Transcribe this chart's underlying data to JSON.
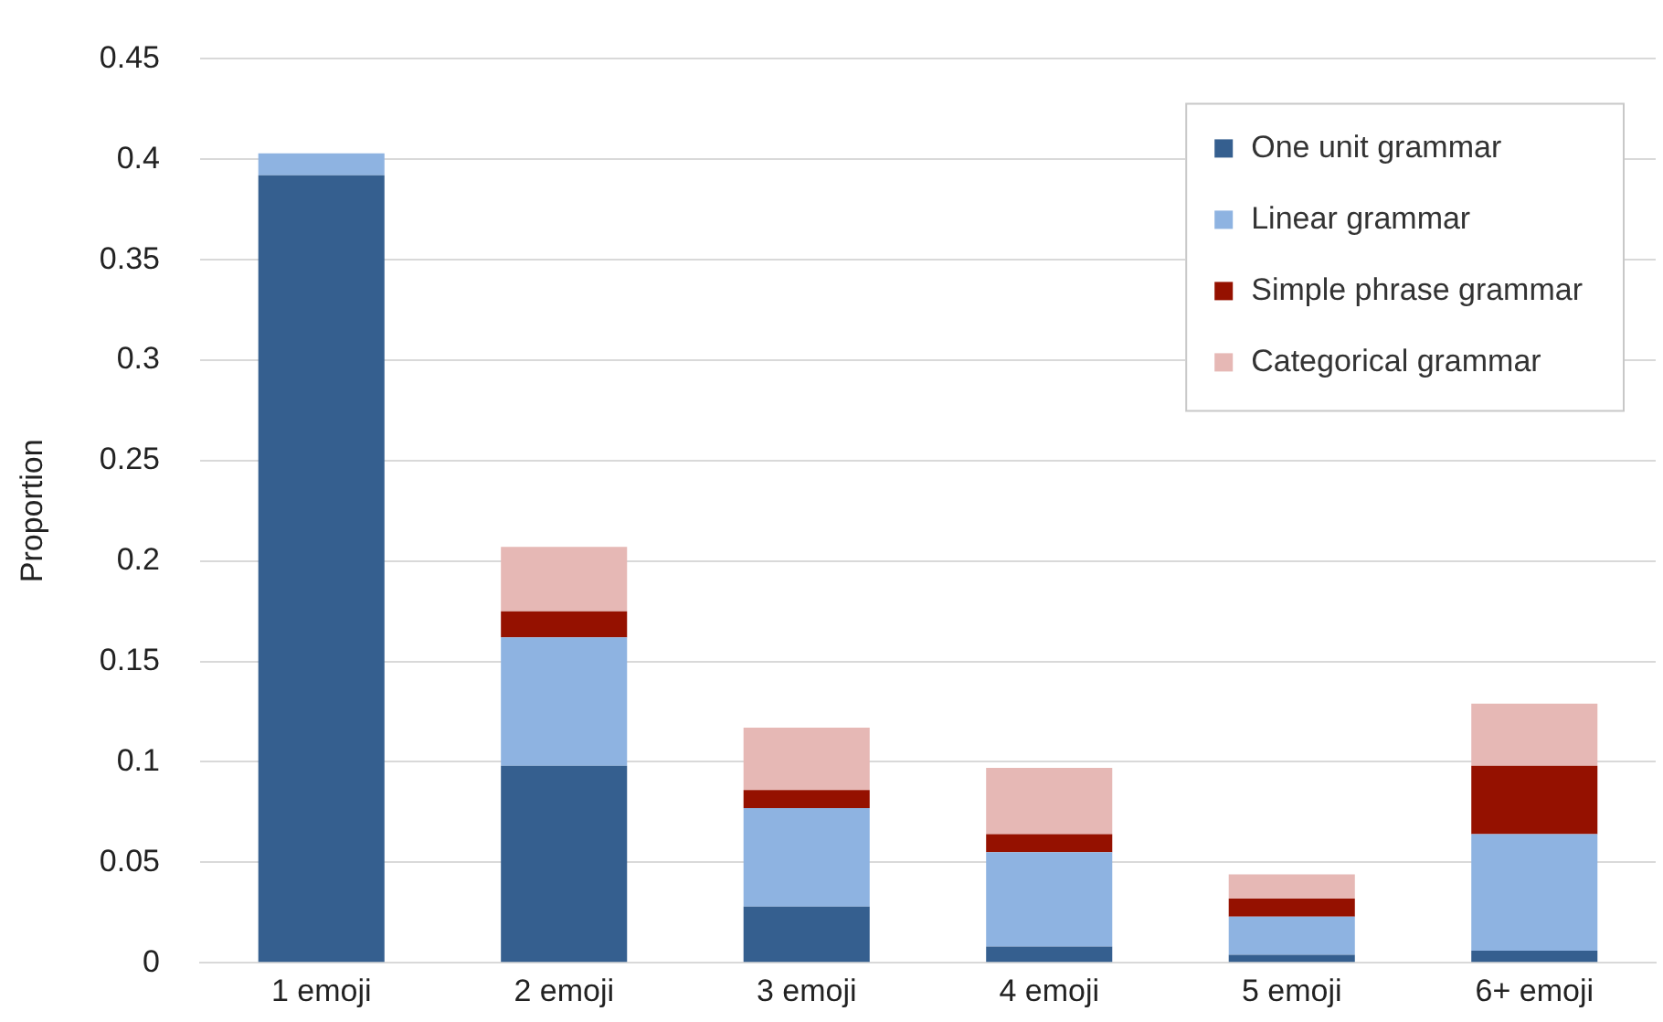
{
  "chart_data": {
    "type": "bar",
    "stacked": true,
    "ylabel": "Proportion",
    "categories": [
      "1 emoji",
      "2 emoji",
      "3 emoji",
      "4 emoji",
      "5 emoji",
      "6+ emoji"
    ],
    "series": [
      {
        "name": "One unit grammar",
        "color": "#355f8f",
        "values": [
          0.392,
          0.098,
          0.028,
          0.008,
          0.004,
          0.006
        ]
      },
      {
        "name": "Linear grammar",
        "color": "#8eb3e1",
        "values": [
          0.011,
          0.064,
          0.049,
          0.047,
          0.019,
          0.058
        ]
      },
      {
        "name": "Simple phrase grammar",
        "color": "#951100",
        "values": [
          0,
          0.013,
          0.009,
          0.009,
          0.009,
          0.034
        ]
      },
      {
        "name": "Categorical grammar",
        "color": "#e6b8b5",
        "values": [
          0,
          0.032,
          0.031,
          0.033,
          0.012,
          0.031
        ]
      }
    ],
    "ylim": [
      0,
      0.45
    ],
    "yticks": [
      0,
      0.05,
      0.1,
      0.15,
      0.2,
      0.25,
      0.3,
      0.35,
      0.4,
      0.45
    ],
    "grid": "y",
    "legend": "top right"
  }
}
